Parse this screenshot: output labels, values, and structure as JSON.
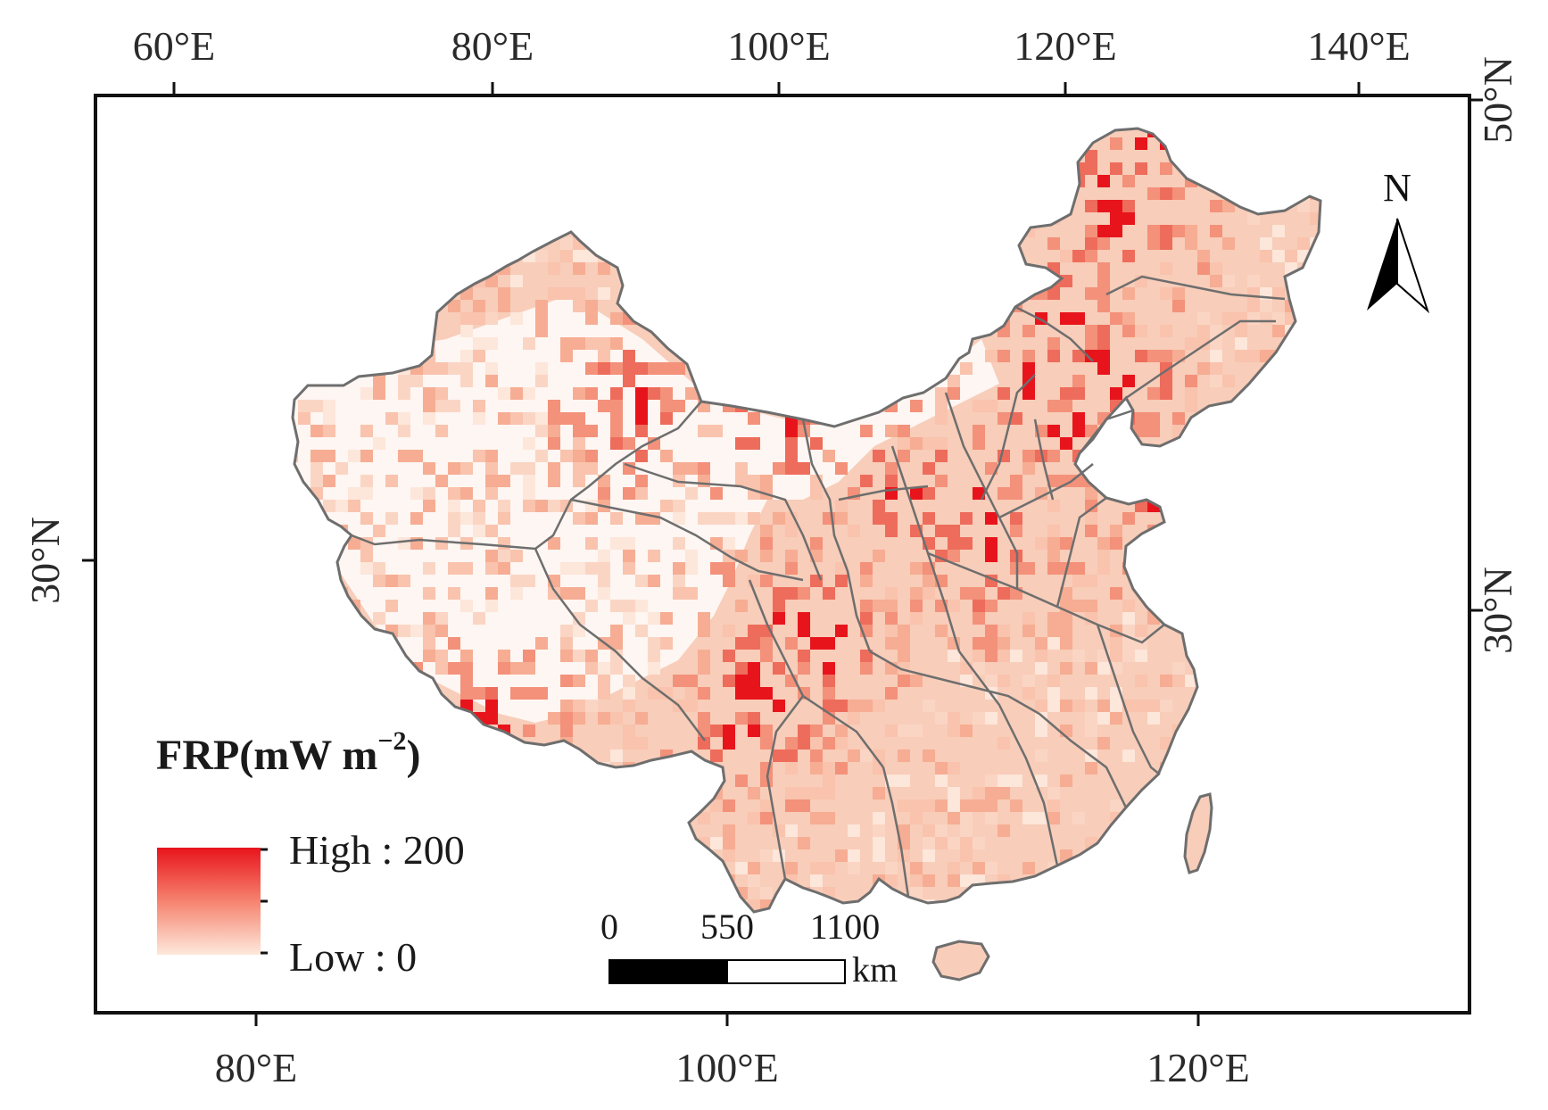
{
  "graticule": {
    "top_labels": [
      "60°E",
      "80°E",
      "100°E",
      "120°E",
      "140°E"
    ],
    "bottom_labels": [
      "80°E",
      "100°E",
      "120°E"
    ],
    "left_labels": [
      "30°N"
    ],
    "right_labels": [
      "50°N",
      "30°N"
    ]
  },
  "legend": {
    "title": "FRP(mW m",
    "title_superscript": "−2",
    "title_close": ")",
    "high_label": "High : 200",
    "low_label": "Low : 0",
    "color_high": "#e8141c",
    "color_low": "#fde9dc"
  },
  "scale_bar": {
    "ticks": [
      "0",
      "550",
      "1100"
    ],
    "unit": "km"
  },
  "north_arrow": {
    "label": "N",
    "icon": "north-arrow-icon"
  },
  "colors": {
    "boundary": "#6e6e6e",
    "frame": "#111111",
    "fill_base": "#f7c6b0"
  }
}
